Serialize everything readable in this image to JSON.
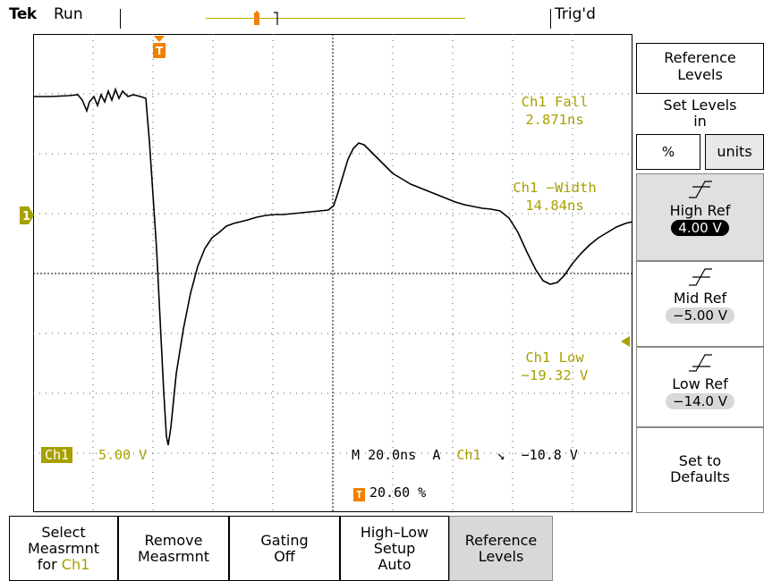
{
  "status": {
    "brand": "Tek",
    "acq_state": "Run",
    "trigger_state": "Trig'd"
  },
  "readouts": {
    "fall": {
      "line1": "Ch1 Fall",
      "line2": "2.871ns"
    },
    "width": {
      "line1": "Ch1 −Width",
      "line2": "14.84ns"
    },
    "low": {
      "line1": "Ch1 Low",
      "line2": "−19.32 V"
    }
  },
  "channel": {
    "badge": "Ch1",
    "scale": "5.00 V",
    "marker": "1"
  },
  "timebase": {
    "prefix": "M",
    "value": "20.0ns",
    "mode": "A",
    "source": "Ch1",
    "slope_glyph": "↘",
    "level": "−10.8 V"
  },
  "trigger_position": {
    "marker": "T",
    "value": "20.60 %"
  },
  "right_menu": {
    "title_l1": "Reference",
    "title_l2": "Levels",
    "sub_l1": "Set Levels",
    "sub_l2": "in",
    "opt_percent": "%",
    "opt_units": "units",
    "high": {
      "label": "High Ref",
      "value": "4.00 V"
    },
    "mid": {
      "label": "Mid Ref",
      "value": "−5.00 V"
    },
    "low": {
      "label": "Low Ref",
      "value": "−14.0 V"
    },
    "defaults_l1": "Set to",
    "defaults_l2": "Defaults"
  },
  "bottom_menu": {
    "select_l1": "Select",
    "select_l2": "Measrmnt",
    "select_l3a": "for",
    "select_l3b": "Ch1",
    "remove_l1": "Remove",
    "remove_l2": "Measrmnt",
    "gating_l1": "Gating",
    "gating_l2": "Off",
    "hilo_l1": "High–Low",
    "hilo_l2": "Setup",
    "hilo_l3": "Auto",
    "ref_l1": "Reference",
    "ref_l2": "Levels"
  },
  "colors": {
    "readout": "#a8a000",
    "trigger_marker": "#f08000",
    "selected_menu": "#d8d8d8"
  }
}
